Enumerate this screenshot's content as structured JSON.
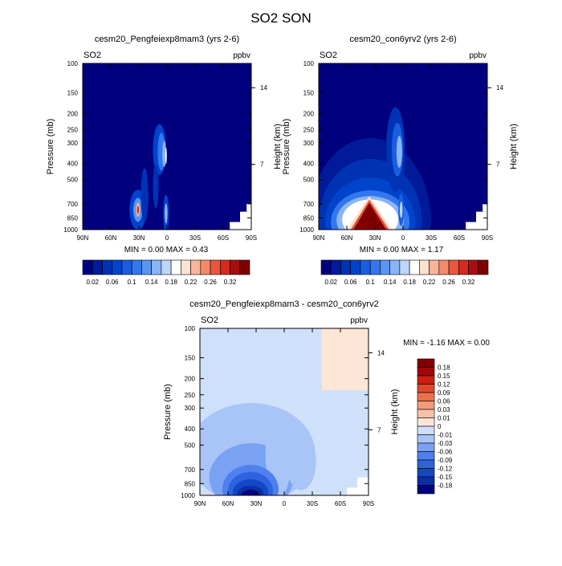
{
  "main_title": "SO2 SON",
  "chart_data": [
    {
      "type": "heatmap",
      "title": "cesm20_Pengfeiexp8mam3 (yrs 2-6)",
      "variable_label": "SO2",
      "units_label": "ppbv",
      "ylabel": "Pressure (mb)",
      "y2label": "Height (km)",
      "x_ticks": [
        "90N",
        "60N",
        "30N",
        "0",
        "30S",
        "60S",
        "90S"
      ],
      "x_tick_values": [
        90,
        60,
        30,
        0,
        -30,
        -60,
        -90
      ],
      "y_ticks": [
        "100",
        "150",
        "200",
        "250",
        "300",
        "400",
        "500",
        "700",
        "850",
        "1000"
      ],
      "y_tick_values": [
        100,
        150,
        200,
        250,
        300,
        400,
        500,
        700,
        850,
        1000
      ],
      "y2_ticks": [
        "14",
        "7"
      ],
      "y2_tick_pressures": [
        140,
        405
      ],
      "xlim": [
        90,
        -90
      ],
      "ylim": [
        100,
        1000
      ],
      "y_scale": "log",
      "min_max_label": "MIN =   0.00   MAX =   0.43",
      "stats": {
        "min": 0.0,
        "max": 0.43
      },
      "levels": [
        0.02,
        0.04,
        0.06,
        0.08,
        0.1,
        0.12,
        0.14,
        0.16,
        0.18,
        0.2,
        0.22,
        0.24,
        0.26,
        0.28,
        0.3,
        0.32
      ],
      "colorbar_labels": [
        "0.02",
        "0.06",
        "0.1",
        "0.14",
        "0.18",
        "0.22",
        "0.26",
        "0.32"
      ],
      "colors": [
        "#00007f",
        "#001a99",
        "#0033b3",
        "#0044cc",
        "#1a5ee0",
        "#3377ee",
        "#5a95f2",
        "#8ab5f7",
        "#bcd5fb",
        "#ffffff",
        "#fde2cf",
        "#f9b59a",
        "#f48a6a",
        "#e8573e",
        "#d42a1f",
        "#a50f0f",
        "#800000"
      ],
      "missing_color": "#ffffff",
      "regions": [
        {
          "lat": 8,
          "p": 330,
          "lat_r": 7,
          "p_r": 1.42,
          "level": 3
        },
        {
          "lat": 6,
          "p": 340,
          "lat_r": 4,
          "p_r": 1.3,
          "level": 5
        },
        {
          "lat": 3,
          "p": 350,
          "lat_r": 2,
          "p_r": 1.2,
          "level": 7
        },
        {
          "lat": 1,
          "p": 360,
          "lat_r": 0.8,
          "p_r": 1.12,
          "level": 9
        },
        {
          "lat": 31,
          "p": 760,
          "lat_r": 9,
          "p_r": 1.32,
          "level": 3
        },
        {
          "lat": 31,
          "p": 760,
          "lat_r": 5,
          "p_r": 1.18,
          "level": 6
        },
        {
          "lat": 31,
          "p": 760,
          "lat_r": 2.2,
          "p_r": 1.1,
          "level": 11
        },
        {
          "lat": 31,
          "p": 760,
          "lat_r": 1,
          "p_r": 1.06,
          "level": 14
        },
        {
          "lat": 1,
          "p": 800,
          "lat_r": 3,
          "p_r": 1.3,
          "level": 3
        },
        {
          "lat": 1,
          "p": 800,
          "lat_r": 1.5,
          "p_r": 1.15,
          "level": 7
        },
        {
          "lat": 24,
          "p": 620,
          "lat_r": 4,
          "p_r": 1.45,
          "level": 2
        },
        {
          "lat": 12,
          "p": 550,
          "lat_r": 3,
          "p_r": 1.35,
          "level": 2
        }
      ],
      "missing_cells": [
        {
          "lat0": -67,
          "lat1": -90,
          "p0": 900,
          "p1": 1000
        },
        {
          "lat0": -78,
          "lat1": -90,
          "p0": 780,
          "p1": 900
        },
        {
          "lat0": -85,
          "lat1": -90,
          "p0": 700,
          "p1": 780
        }
      ]
    },
    {
      "type": "heatmap",
      "title": "cesm20_con6yrv2 (yrs 2-6)",
      "variable_label": "SO2",
      "units_label": "ppbv",
      "ylabel": "Pressure (mb)",
      "y2label": "Height (km)",
      "x_ticks": [
        "90N",
        "60N",
        "30N",
        "0",
        "30S",
        "60S",
        "90S"
      ],
      "x_tick_values": [
        90,
        60,
        30,
        0,
        -30,
        -60,
        -90
      ],
      "y_ticks": [
        "100",
        "150",
        "200",
        "250",
        "300",
        "400",
        "500",
        "700",
        "850",
        "1000"
      ],
      "y_tick_values": [
        100,
        150,
        200,
        250,
        300,
        400,
        500,
        700,
        850,
        1000
      ],
      "y2_ticks": [
        "14",
        "7"
      ],
      "y2_tick_pressures": [
        140,
        405
      ],
      "xlim": [
        90,
        -90
      ],
      "ylim": [
        100,
        1000
      ],
      "y_scale": "log",
      "min_max_label": "MIN =   0.00   MAX =   1.17",
      "stats": {
        "min": 0.0,
        "max": 1.17
      },
      "levels": [
        0.02,
        0.04,
        0.06,
        0.08,
        0.1,
        0.12,
        0.14,
        0.16,
        0.18,
        0.2,
        0.22,
        0.24,
        0.26,
        0.28,
        0.3,
        0.32
      ],
      "colorbar_labels": [
        "0.02",
        "0.06",
        "0.1",
        "0.14",
        "0.18",
        "0.22",
        "0.26",
        "0.32"
      ],
      "colors": [
        "#00007f",
        "#001a99",
        "#0033b3",
        "#0044cc",
        "#1a5ee0",
        "#3377ee",
        "#5a95f2",
        "#8ab5f7",
        "#bcd5fb",
        "#ffffff",
        "#fde2cf",
        "#f9b59a",
        "#f48a6a",
        "#e8573e",
        "#d42a1f",
        "#a50f0f",
        "#800000"
      ],
      "missing_color": "#ffffff",
      "regions": [
        {
          "lat": 35,
          "p": 900,
          "lat_r": 65,
          "p_r": 3.2,
          "level": 1
        },
        {
          "lat": 35,
          "p": 900,
          "lat_r": 55,
          "p_r": 2.4,
          "level": 2
        },
        {
          "lat": 35,
          "p": 900,
          "lat_r": 48,
          "p_r": 1.85,
          "level": 3
        },
        {
          "lat": 35,
          "p": 900,
          "lat_r": 42,
          "p_r": 1.55,
          "level": 5
        },
        {
          "lat": 35,
          "p": 880,
          "lat_r": 36,
          "p_r": 1.4,
          "level": 7
        },
        {
          "lat": 35,
          "p": 870,
          "lat_r": 30,
          "p_r": 1.32,
          "level": 9
        },
        {
          "lat": 8,
          "p": 330,
          "lat_r": 10,
          "p_r": 1.8,
          "level": 2
        },
        {
          "lat": 6,
          "p": 330,
          "lat_r": 6,
          "p_r": 1.45,
          "level": 4
        },
        {
          "lat": 4,
          "p": 340,
          "lat_r": 3,
          "p_r": 1.25,
          "level": 7
        },
        {
          "lat": 2,
          "p": 760,
          "lat_r": 3,
          "p_r": 1.25,
          "level": 4
        },
        {
          "lat": 2,
          "p": 760,
          "lat_r": 1.5,
          "p_r": 1.12,
          "level": 8
        }
      ],
      "triangle_regions": [
        {
          "lat_left": 60,
          "lat_right": 12,
          "lat_top": 36,
          "p_top": 630,
          "p_base": 1000,
          "level": 10
        },
        {
          "lat_left": 56,
          "lat_right": 15,
          "lat_top": 36,
          "p_top": 660,
          "p_base": 1000,
          "level": 13
        },
        {
          "lat_left": 53,
          "lat_right": 18,
          "lat_top": 36,
          "p_top": 690,
          "p_base": 1000,
          "level": 16
        }
      ],
      "missing_cells": [
        {
          "lat0": -67,
          "lat1": -90,
          "p0": 900,
          "p1": 1000
        },
        {
          "lat0": -78,
          "lat1": -90,
          "p0": 780,
          "p1": 900
        },
        {
          "lat0": -85,
          "lat1": -90,
          "p0": 700,
          "p1": 780
        }
      ]
    },
    {
      "type": "heatmap",
      "title": "cesm20_Pengfeiexp8mam3 - cesm20_con6yrv2",
      "variable_label": "SO2",
      "units_label": "ppbv",
      "ylabel": "Pressure (mb)",
      "y2label": "Height (km)",
      "x_ticks": [
        "90N",
        "60N",
        "30N",
        "0",
        "30S",
        "60S",
        "90S"
      ],
      "x_tick_values": [
        90,
        60,
        30,
        0,
        -30,
        -60,
        -90
      ],
      "y_ticks": [
        "100",
        "150",
        "200",
        "250",
        "300",
        "400",
        "500",
        "700",
        "850",
        "1000"
      ],
      "y_tick_values": [
        100,
        150,
        200,
        250,
        300,
        400,
        500,
        700,
        850,
        1000
      ],
      "y2_ticks": [
        "14",
        "7"
      ],
      "y2_tick_pressures": [
        140,
        405
      ],
      "xlim": [
        90,
        -90
      ],
      "ylim": [
        100,
        1000
      ],
      "y_scale": "log",
      "min_max_label": "MIN =  -1.16   MAX =    0.00",
      "stats": {
        "min": -1.16,
        "max": 0.0
      },
      "levels": [
        -0.18,
        -0.15,
        -0.12,
        -0.09,
        -0.06,
        -0.03,
        -0.01,
        0,
        0.01,
        0.03,
        0.06,
        0.09,
        0.12,
        0.15,
        0.18
      ],
      "colorbar_labels": [
        "-0.18",
        "-0.15",
        "-0.12",
        "-0.09",
        "-0.06",
        "-0.03",
        "-0.01",
        "0",
        "0.01",
        "0.03",
        "0.06",
        "0.09",
        "0.12",
        "0.15",
        "0.18"
      ],
      "colors": [
        "#00007f",
        "#0a2ea8",
        "#1446c8",
        "#2f62e0",
        "#4f80ee",
        "#7aa2f3",
        "#a9c4f7",
        "#cfe0fa",
        "#fde6d6",
        "#f9c2a6",
        "#f59a78",
        "#ef6f4d",
        "#e4462b",
        "#cc1e12",
        "#a00808",
        "#800000"
      ],
      "background_level": 7,
      "missing_color": "#ffffff",
      "regions": [
        {
          "lat": 35,
          "p": 560,
          "lat_r": 68,
          "p_r": 2.0,
          "level": 6
        },
        {
          "lat": 35,
          "p": 780,
          "lat_r": 45,
          "p_r": 1.6,
          "level": 5
        },
        {
          "lat": 6,
          "p": 560,
          "lat_r": 14,
          "p_r": 1.85,
          "level": 6
        },
        {
          "lat": -18,
          "p": 620,
          "lat_r": 16,
          "p_r": 1.5,
          "level": 6
        },
        {
          "lat": 36,
          "p": 920,
          "lat_r": 30,
          "p_r": 1.4,
          "level": 4
        },
        {
          "lat": 36,
          "p": 940,
          "lat_r": 24,
          "p_r": 1.3,
          "level": 3
        },
        {
          "lat": 36,
          "p": 960,
          "lat_r": 19,
          "p_r": 1.2,
          "level": 2
        },
        {
          "lat": 36,
          "p": 980,
          "lat_r": 14,
          "p_r": 1.12,
          "level": 1
        },
        {
          "lat": 36,
          "p": 1000,
          "lat_r": 10,
          "p_r": 1.08,
          "level": 0
        }
      ],
      "rect_regions": [
        {
          "lat0": -40,
          "lat1": -90,
          "p0": 100,
          "p1": 235,
          "level": 8
        }
      ],
      "missing_cells": [
        {
          "lat0": -67,
          "lat1": -90,
          "p0": 900,
          "p1": 1000
        },
        {
          "lat0": -78,
          "lat1": -90,
          "p0": 780,
          "p1": 900
        }
      ]
    }
  ]
}
